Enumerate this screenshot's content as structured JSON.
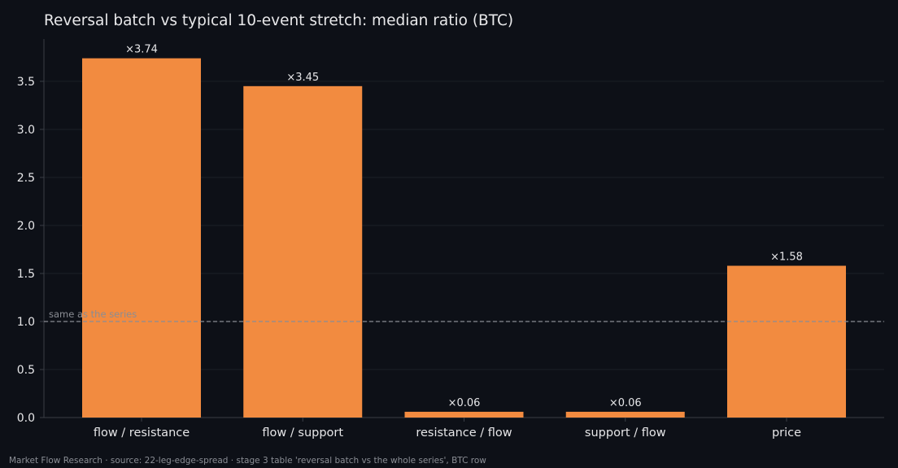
{
  "chart_data": {
    "type": "bar",
    "title": "Reversal batch vs typical 10-event stretch: median ratio (BTC)",
    "xlabel": "",
    "ylabel": "",
    "categories": [
      "flow / resistance",
      "flow / support",
      "resistance / flow",
      "support / flow",
      "price"
    ],
    "values": [
      3.74,
      3.45,
      0.06,
      0.06,
      1.58
    ],
    "value_labels": [
      "×3.74",
      "×3.45",
      "×0.06",
      "×0.06",
      "×1.58"
    ],
    "ylim": [
      0,
      3.94
    ],
    "yticks": [
      0.0,
      0.5,
      1.0,
      1.5,
      2.0,
      2.5,
      3.0,
      3.5
    ],
    "ytick_labels": [
      "0.0",
      "0.5",
      "1.0",
      "1.5",
      "2.0",
      "2.5",
      "3.0",
      "3.5"
    ],
    "grid": true,
    "reference_line": {
      "value": 1.0,
      "label": "same as the series",
      "style": "dashed"
    },
    "colors": {
      "bar": "#f28b40",
      "background": "#0d1017",
      "grid": "#1b1f27",
      "axis": "#3a3e46",
      "reference": "#8a8d94"
    }
  },
  "footer": "Market Flow Research · source: 22-leg-edge-spread · stage 3 table 'reversal batch vs the whole series', BTC row"
}
